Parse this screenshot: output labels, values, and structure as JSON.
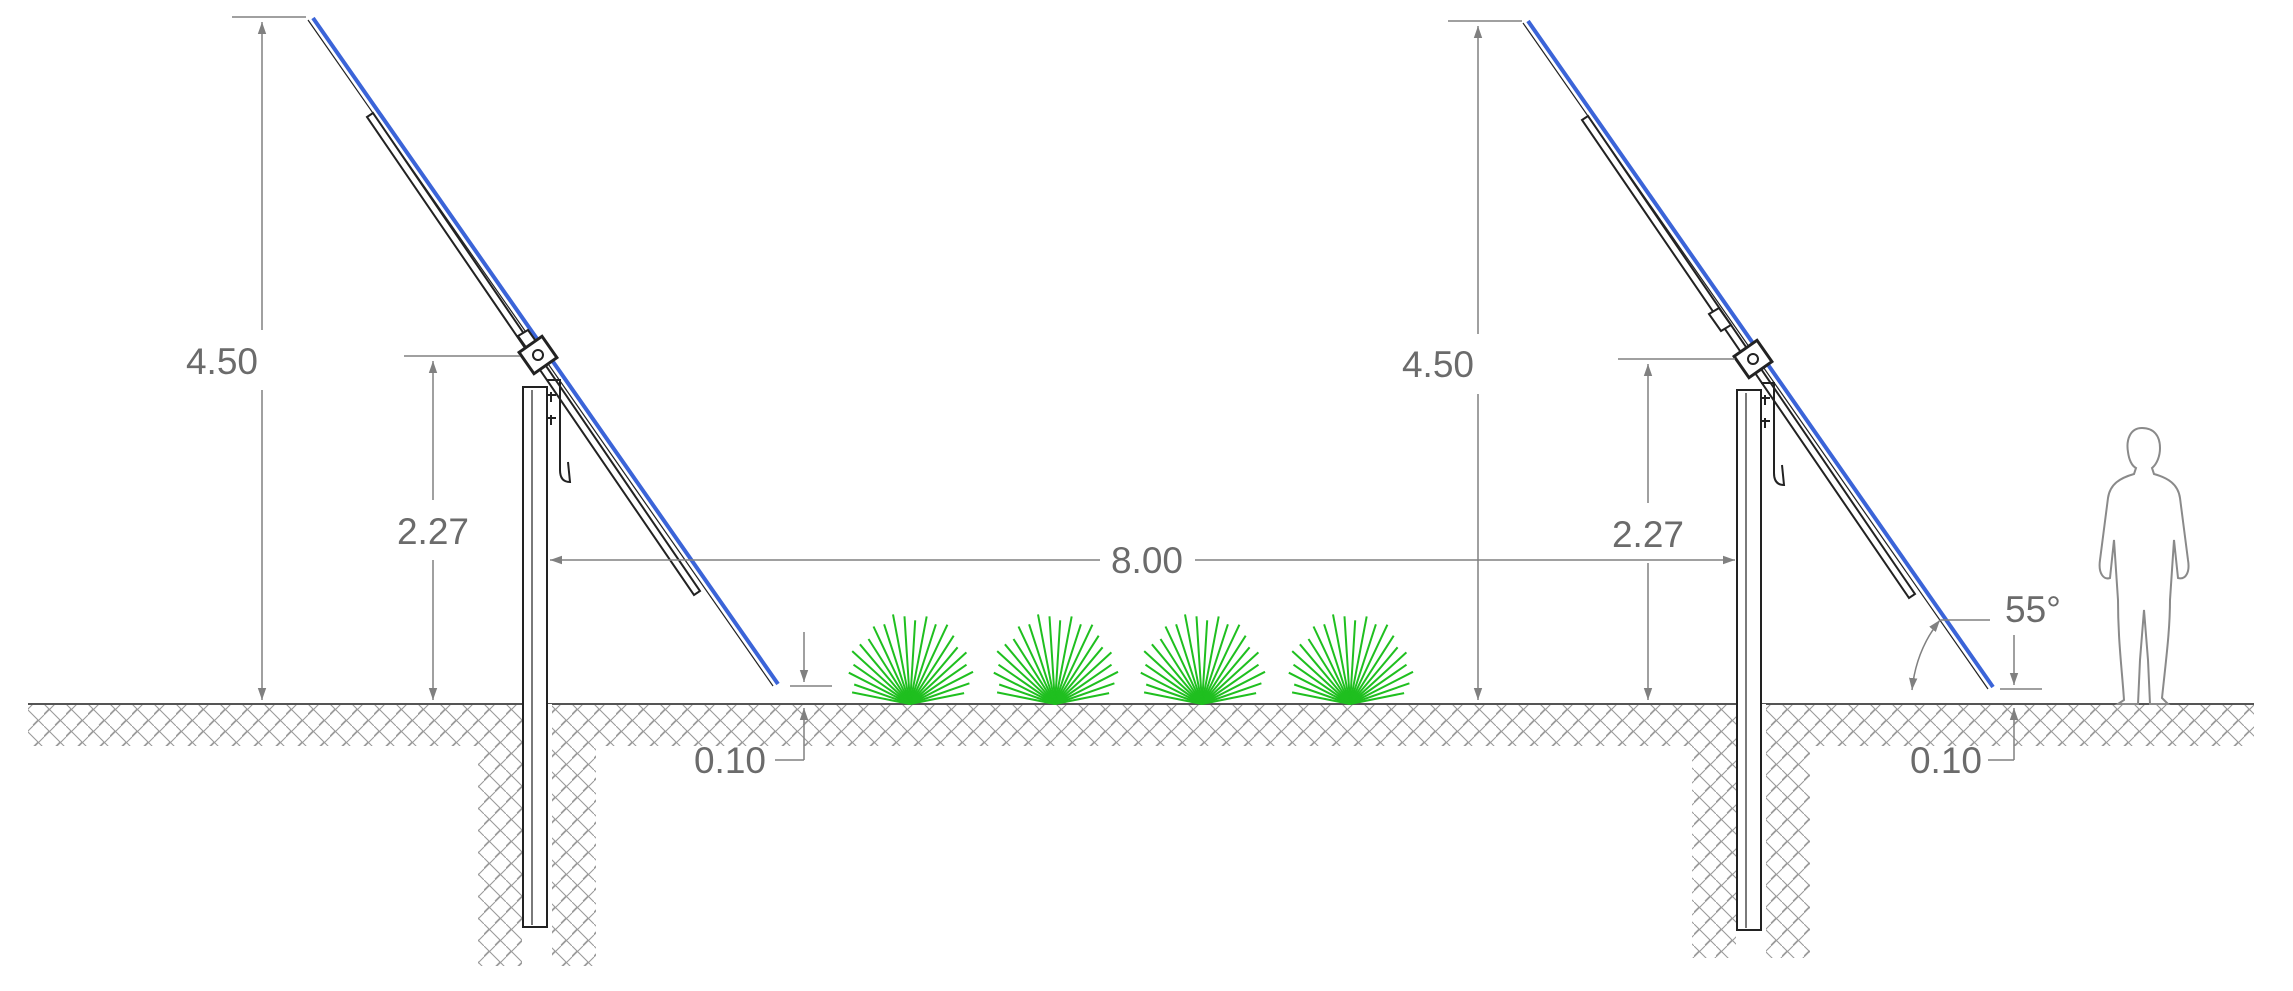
{
  "colors": {
    "panel": "#3b64d8",
    "structure": "#222222",
    "dimension": "#808080",
    "dimension_text": "#6b6b6b",
    "vegetation": "#1fbf1f",
    "hatch": "#9a9a9a"
  },
  "dimensions": {
    "left_total_height": "4.50",
    "left_pivot_height": "2.27",
    "row_spacing": "8.00",
    "right_total_height": "4.50",
    "right_pivot_height": "2.27",
    "left_ground_clearance": "0.10",
    "right_ground_clearance": "0.10",
    "tilt_angle": "55°"
  },
  "plants": {
    "count": 4
  }
}
